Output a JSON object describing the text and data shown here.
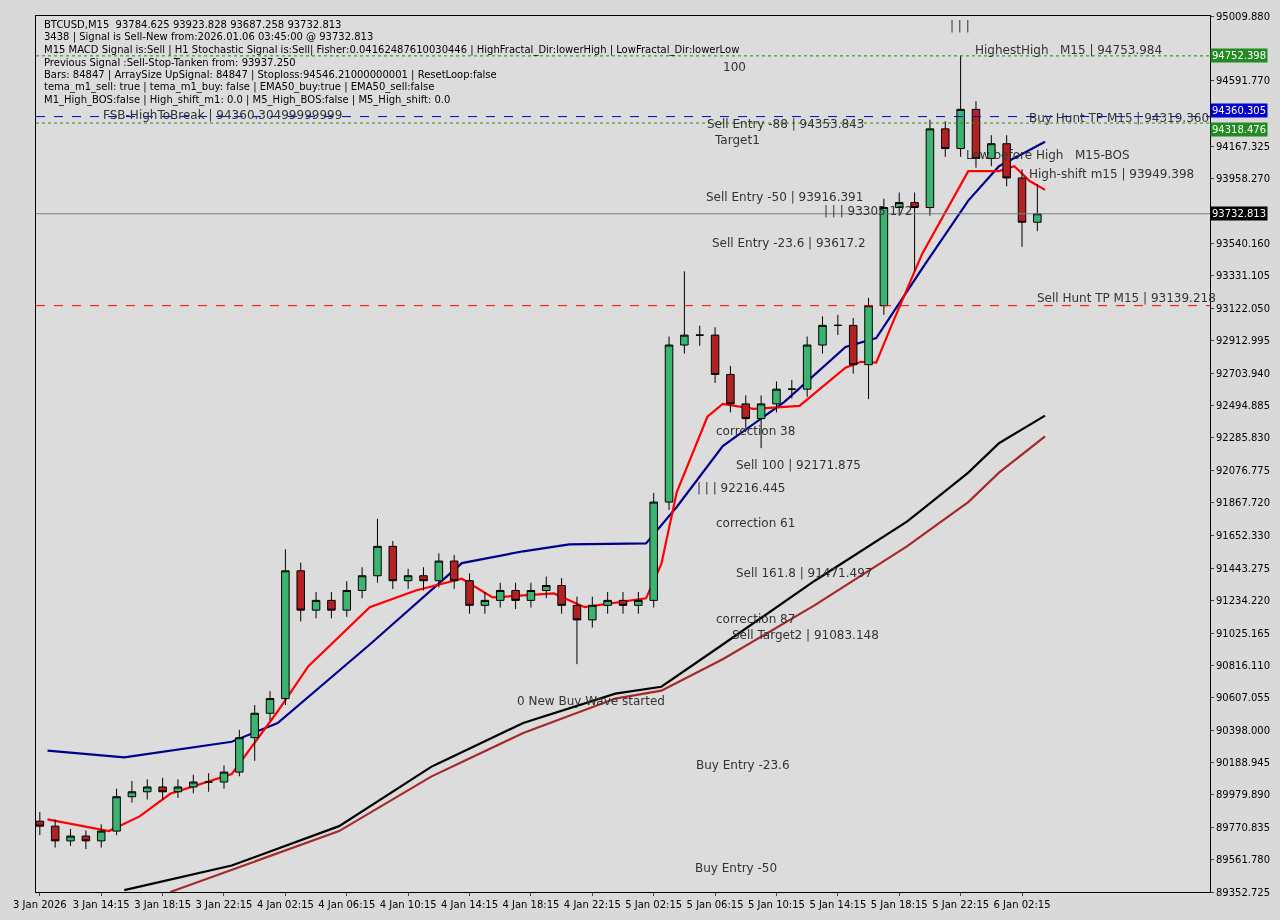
{
  "chart_data": {
    "type": "candlestick",
    "x": [
      "2026-01-03T10:15",
      "2026-01-03T11:15",
      "2026-01-03T12:15",
      "2026-01-03T13:15",
      "2026-01-03T14:15",
      "2026-01-03T15:15",
      "2026-01-03T16:15",
      "2026-01-03T17:15",
      "2026-01-03T18:15",
      "2026-01-03T19:15",
      "2026-01-03T20:15",
      "2026-01-03T21:15",
      "2026-01-03T22:15",
      "2026-01-03T23:15",
      "2026-01-04T00:15",
      "2026-01-04T01:15",
      "2026-01-04T02:15",
      "2026-01-04T03:15",
      "2026-01-04T04:15",
      "2026-01-04T05:15",
      "2026-01-04T06:15",
      "2026-01-04T07:15",
      "2026-01-04T08:15",
      "2026-01-04T09:15",
      "2026-01-04T10:15",
      "2026-01-04T11:15",
      "2026-01-04T12:15",
      "2026-01-04T13:15",
      "2026-01-04T14:15",
      "2026-01-04T15:15",
      "2026-01-04T16:15",
      "2026-01-04T17:15",
      "2026-01-04T18:15",
      "2026-01-04T19:15",
      "2026-01-04T20:15",
      "2026-01-04T21:15",
      "2026-01-04T22:15",
      "2026-01-04T23:15",
      "2026-01-05T00:15",
      "2026-01-05T01:15",
      "2026-01-05T02:15",
      "2026-01-05T03:15",
      "2026-01-05T04:15",
      "2026-01-05T05:15",
      "2026-01-05T06:15",
      "2026-01-05T07:15",
      "2026-01-05T08:15",
      "2026-01-05T09:15",
      "2026-01-05T10:15",
      "2026-01-05T11:15",
      "2026-01-05T12:15",
      "2026-01-05T13:15",
      "2026-01-05T14:15",
      "2026-01-05T15:15",
      "2026-01-05T16:15",
      "2026-01-05T17:15",
      "2026-01-05T18:15",
      "2026-01-05T19:15",
      "2026-01-05T20:15",
      "2026-01-05T21:15",
      "2026-01-05T22:15",
      "2026-01-05T23:15",
      "2026-01-06T00:15",
      "2026-01-06T01:15",
      "2026-01-06T02:15",
      "2026-01-06T03:15"
    ],
    "ohlc": [
      [
        89810,
        89870,
        89720,
        89778
      ],
      [
        89778,
        89820,
        89640,
        89683
      ],
      [
        89683,
        89760,
        89650,
        89714
      ],
      [
        89714,
        89750,
        89630,
        89683
      ],
      [
        89683,
        89790,
        89640,
        89746
      ],
      [
        89746,
        90020,
        89720,
        89968
      ],
      [
        89968,
        90070,
        89930,
        90000
      ],
      [
        90000,
        90080,
        89950,
        90031
      ],
      [
        90031,
        90090,
        89950,
        90000
      ],
      [
        90000,
        90080,
        89960,
        90031
      ],
      [
        90031,
        90110,
        89990,
        90063
      ],
      [
        90063,
        90120,
        90000,
        90063
      ],
      [
        90063,
        90170,
        90020,
        90127
      ],
      [
        90127,
        90400,
        90100,
        90349
      ],
      [
        90349,
        90560,
        90200,
        90507
      ],
      [
        90507,
        90650,
        90460,
        90602
      ],
      [
        90602,
        91566,
        90560,
        91427
      ],
      [
        91427,
        91480,
        91100,
        91173
      ],
      [
        91173,
        91290,
        91120,
        91236
      ],
      [
        91236,
        91290,
        91120,
        91173
      ],
      [
        91173,
        91360,
        91130,
        91300
      ],
      [
        91300,
        91450,
        91250,
        91395
      ],
      [
        91395,
        91763,
        91350,
        91585
      ],
      [
        91585,
        91620,
        91310,
        91363
      ],
      [
        91363,
        91440,
        91310,
        91395
      ],
      [
        91395,
        91450,
        91300,
        91363
      ],
      [
        91363,
        91540,
        91320,
        91490
      ],
      [
        91490,
        91530,
        91310,
        91363
      ],
      [
        91363,
        91410,
        91150,
        91204
      ],
      [
        91204,
        91290,
        91150,
        91236
      ],
      [
        91236,
        91350,
        91190,
        91300
      ],
      [
        91300,
        91350,
        91180,
        91236
      ],
      [
        91236,
        91350,
        91190,
        91300
      ],
      [
        91300,
        91390,
        91250,
        91332
      ],
      [
        91332,
        91380,
        91150,
        91204
      ],
      [
        91204,
        91260,
        90824,
        91110
      ],
      [
        91110,
        91260,
        91060,
        91204
      ],
      [
        91204,
        91290,
        91150,
        91236
      ],
      [
        91236,
        91290,
        91150,
        91204
      ],
      [
        91204,
        91290,
        91150,
        91236
      ],
      [
        91236,
        91930,
        91190,
        91871
      ],
      [
        91871,
        92940,
        91820,
        92885
      ],
      [
        92885,
        93361,
        92830,
        92949
      ],
      [
        92949,
        93010,
        92880,
        92949
      ],
      [
        92949,
        93000,
        92640,
        92695
      ],
      [
        92695,
        92750,
        92450,
        92505
      ],
      [
        92505,
        92560,
        92350,
        92410
      ],
      [
        92410,
        92560,
        92219,
        92505
      ],
      [
        92505,
        92650,
        92450,
        92600
      ],
      [
        92600,
        92660,
        92540,
        92600
      ],
      [
        92600,
        92940,
        92550,
        92885
      ],
      [
        92885,
        93070,
        92830,
        93012
      ],
      [
        93012,
        93080,
        92950,
        93012
      ],
      [
        93012,
        93060,
        92700,
        92758
      ],
      [
        92758,
        93190,
        92536,
        93139
      ],
      [
        93139,
        93830,
        93080,
        93773
      ],
      [
        93773,
        93870,
        93720,
        93805
      ],
      [
        93805,
        93870,
        93361,
        93773
      ],
      [
        93773,
        94340,
        93720,
        94281
      ],
      [
        94281,
        94330,
        94100,
        94154
      ],
      [
        94154,
        94754,
        94100,
        94407
      ],
      [
        94407,
        94460,
        94030,
        94090
      ],
      [
        94090,
        94240,
        94040,
        94185
      ],
      [
        94185,
        94240,
        93910,
        93964
      ],
      [
        93964,
        94020,
        93519,
        93678
      ],
      [
        93678,
        93923.828,
        93620,
        93732.813
      ]
    ],
    "series": [
      {
        "type": "line",
        "color": "#00008b",
        "x": [
          "2026-01-03T10:45",
          "2026-01-03T15:45",
          "2026-01-03T22:45",
          "2026-01-04T01:45",
          "2026-01-04T07:45",
          "2026-01-04T13:45",
          "2026-01-04T17:45",
          "2026-01-04T20:45",
          "2026-01-05T01:45",
          "2026-01-05T03:45",
          "2026-01-05T06:45",
          "2026-01-05T10:45",
          "2026-01-05T14:45",
          "2026-01-05T16:45",
          "2026-01-05T19:45",
          "2026-01-05T22:45",
          "2026-01-06T00:45",
          "2026-01-06T03:45"
        ],
        "values": [
          90266,
          90222,
          90323,
          90444,
          90951,
          91477,
          91553,
          91598,
          91604,
          91839,
          92232,
          92517,
          92873,
          92930,
          93380,
          93818,
          94040,
          94198
        ]
      },
      {
        "type": "line",
        "color": "#ff0000",
        "x": [
          "2026-01-03T10:45",
          "2026-01-03T14:45",
          "2026-01-03T16:45",
          "2026-01-03T18:45",
          "2026-01-03T22:45",
          "2026-01-04T01:45",
          "2026-01-04T03:45",
          "2026-01-04T07:45",
          "2026-01-04T10:45",
          "2026-01-04T13:45",
          "2026-01-04T15:45",
          "2026-01-04T19:45",
          "2026-01-04T21:45",
          "2026-01-05T01:45",
          "2026-01-05T02:45",
          "2026-01-05T03:45",
          "2026-01-05T05:45",
          "2026-01-05T06:45",
          "2026-01-05T08:45",
          "2026-01-05T11:45",
          "2026-01-05T14:45",
          "2026-01-05T15:45",
          "2026-01-05T16:45",
          "2026-01-05T17:45",
          "2026-01-05T19:45",
          "2026-01-05T22:45",
          "2026-01-06T00:45",
          "2026-01-06T01:45",
          "2026-01-06T02:45",
          "2026-01-06T03:45"
        ],
        "values": [
          89822,
          89746,
          89841,
          89987,
          90114,
          90520,
          90811,
          91192,
          91300,
          91376,
          91255,
          91281,
          91192,
          91249,
          91471,
          91934,
          92422,
          92505,
          92473,
          92492,
          92739,
          92777,
          92771,
          93012,
          93475,
          94008,
          94008,
          94040,
          93944,
          93887
        ]
      },
      {
        "type": "line",
        "color": "#000000",
        "x": [
          "2026-01-03T15:45",
          "2026-01-03T22:45",
          "2026-01-04T05:45",
          "2026-01-04T11:45",
          "2026-01-04T17:45",
          "2026-01-04T23:45",
          "2026-01-05T02:45",
          "2026-01-05T06:45",
          "2026-01-05T12:45",
          "2026-01-05T18:45",
          "2026-01-05T22:45",
          "2026-01-06T00:45",
          "2026-01-06T03:45"
        ],
        "values": [
          89365,
          89524,
          89778,
          90161,
          90444,
          90634,
          90678,
          90951,
          91363,
          91744,
          92061,
          92251,
          92429
        ]
      },
      {
        "type": "line",
        "color": "#a52a2a",
        "x": [
          "2026-01-03T18:45",
          "2026-01-04T05:45",
          "2026-01-04T11:45",
          "2026-01-04T17:45",
          "2026-01-04T23:45",
          "2026-01-05T02:45",
          "2026-01-05T06:45",
          "2026-01-05T12:45",
          "2026-01-05T18:45",
          "2026-01-05T22:45",
          "2026-01-06T00:45",
          "2026-01-06T03:45"
        ],
        "values": [
          89353,
          89746,
          90098,
          90380,
          90602,
          90653,
          90856,
          91205,
          91585,
          91871,
          92061,
          92295
        ]
      }
    ],
    "xlim": [
      "2026-01-03T10:00",
      "2026-01-06T14:30"
    ],
    "xticks": [
      {
        "value": "2026-01-03T10:15",
        "label": "3 Jan 2026"
      },
      {
        "value": "2026-01-03T14:15",
        "label": "3 Jan 14:15"
      },
      {
        "value": "2026-01-03T18:15",
        "label": "3 Jan 18:15"
      },
      {
        "value": "2026-01-03T22:15",
        "label": "3 Jan 22:15"
      },
      {
        "value": "2026-01-04T02:15",
        "label": "4 Jan 02:15"
      },
      {
        "value": "2026-01-04T06:15",
        "label": "4 Jan 06:15"
      },
      {
        "value": "2026-01-04T10:15",
        "label": "4 Jan 10:15"
      },
      {
        "value": "2026-01-04T14:15",
        "label": "4 Jan 14:15"
      },
      {
        "value": "2026-01-04T18:15",
        "label": "4 Jan 18:15"
      },
      {
        "value": "2026-01-04T22:15",
        "label": "4 Jan 22:15"
      },
      {
        "value": "2026-01-05T02:15",
        "label": "5 Jan 02:15"
      },
      {
        "value": "2026-01-05T06:15",
        "label": "5 Jan 06:15"
      },
      {
        "value": "2026-01-05T10:15",
        "label": "5 Jan 10:15"
      },
      {
        "value": "2026-01-05T14:15",
        "label": "5 Jan 14:15"
      },
      {
        "value": "2026-01-05T18:15",
        "label": "5 Jan 18:15"
      },
      {
        "value": "2026-01-05T22:15",
        "label": "5 Jan 22:15"
      },
      {
        "value": "2026-01-06T02:15",
        "label": "6 Jan 02:15"
      }
    ],
    "ylim": [
      89352.725,
      95009.88
    ],
    "yticks": [
      {
        "value": 95009.88,
        "label": "95009.880"
      },
      {
        "value": 94591.77,
        "label": "94591.770"
      },
      {
        "value": 94167.325,
        "label": "94167.325"
      },
      {
        "value": 93958.27,
        "label": "93958.270"
      },
      {
        "value": 93540.16,
        "label": "93540.160"
      },
      {
        "value": 93331.105,
        "label": "93331.105"
      },
      {
        "value": 93122.05,
        "label": "93122.050"
      },
      {
        "value": 92912.995,
        "label": "92912.995"
      },
      {
        "value": 92703.94,
        "label": "92703.940"
      },
      {
        "value": 92494.885,
        "label": "92494.885"
      },
      {
        "value": 92285.83,
        "label": "92285.830"
      },
      {
        "value": 92076.775,
        "label": "92076.775"
      },
      {
        "value": 91867.72,
        "label": "91867.720"
      },
      {
        "value": 91652.33,
        "label": "91652.330"
      },
      {
        "value": 91443.275,
        "label": "91443.275"
      },
      {
        "value": 91234.22,
        "label": "91234.220"
      },
      {
        "value": 91025.165,
        "label": "91025.165"
      },
      {
        "value": 90816.11,
        "label": "90816.110"
      },
      {
        "value": 90607.055,
        "label": "90607.055"
      },
      {
        "value": 90398.0,
        "label": "90398.000"
      },
      {
        "value": 90188.945,
        "label": "90188.945"
      },
      {
        "value": 89979.89,
        "label": "89979.890"
      },
      {
        "value": 89770.835,
        "label": "89770.835"
      },
      {
        "value": 89561.78,
        "label": "89561.780"
      },
      {
        "value": 89352.725,
        "label": "89352.725"
      }
    ],
    "ref_lines": [
      {
        "axis": "y",
        "value": 94752.398,
        "label": "94752.398",
        "color": "#228b22",
        "line_style": "dotted"
      },
      {
        "axis": "y",
        "value": 94360.305,
        "label": "94360.305",
        "color": "#0000cd",
        "line_style": "dashed"
      },
      {
        "axis": "y",
        "value": 94318.476,
        "label": "94318.476",
        "color": "#228b22",
        "line_style": "dotted"
      },
      {
        "axis": "y",
        "value": 93732.813,
        "label": "93732.813",
        "color": "#708090",
        "line_style": "solid"
      },
      {
        "axis": "y",
        "value": 93139.218,
        "color": "#ff0000",
        "line_style": "dashed"
      }
    ],
    "annotations": [
      "BTCUSD,M15  93784.625 93923.828 93687.258 93732.813",
      "3438 | Signal is Sell-New from:2026.01.06 03:45:00 @ 93732.813",
      "M15 MACD Signal is:Sell | H1 Stochastic Signal is:Sell| Fisher:0.04162487610030446 | HighFractal_Dir:lowerHigh | LowFractal_Dir:lowerLow",
      "Previous Signal :Sell-Stop-Tanken from: 93937.250",
      "Bars: 84847 | ArraySize UpSignal: 84847 | Stoploss:94546.21000000001 | ResetLoop:false",
      "tema_m1_sell: true | tema_m1_buy: false | EMA50_buy:true | EMA50_sell:false",
      "M1_High_BOS:false | High_shift_m1: 0.0 | M5_High_BOS:false | M5_High_shift: 0.0",
      "FSB-HighToBreak | 94360.30499999999",
      "100",
      "Sell Entry -88 | 94353.843",
      "Target1",
      "Sell Entry -50 | 93916.391",
      "| | | 93305.172",
      "Sell Entry -23.6 | 93617.2",
      "correction 38",
      "Sell 100 | 92171.875",
      "| | | 92216.445",
      "correction 61",
      "Sell 161.8 | 91471.497",
      "correction 87",
      "Sell Target2 | 91083.148",
      "0 New Buy Wave started",
      "Buy Entry -23.6",
      "Buy Entry -50",
      "| | |",
      "HighestHigh   M15 | 94753.984",
      "Buy Hunt TP M15 | 94319.360",
      "Low before High   M15-BOS",
      "High-shift m15 | 93949.398",
      "Sell Hunt TP M15 | 93139.218"
    ],
    "grid": false
  }
}
